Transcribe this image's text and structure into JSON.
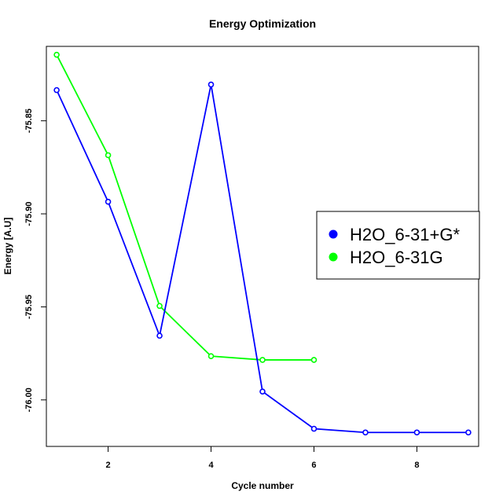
{
  "chart_data": {
    "type": "line",
    "title": "Energy Optimization",
    "xlabel": "Cycle number",
    "ylabel": "Energy [A.U]",
    "xlim": [
      0.8,
      9.2
    ],
    "ylim": [
      -76.025,
      -75.81
    ],
    "xticks": [
      2,
      4,
      6,
      8
    ],
    "yticks": [
      -75.85,
      -75.9,
      -75.95,
      -76.0
    ],
    "xtick_labels": [
      "2",
      "4",
      "6",
      "8"
    ],
    "ytick_labels": [
      "-75.85",
      "-75.90",
      "-75.95",
      "-76.00"
    ],
    "grid": false,
    "legend_position": "right",
    "series": [
      {
        "name": "H2O_6-31+G*",
        "color": "#0000ff",
        "x": [
          1,
          2,
          3,
          4,
          5,
          6,
          7,
          8,
          9
        ],
        "y": [
          -75.8335,
          -75.8935,
          -75.9655,
          -75.8305,
          -75.9955,
          -76.0155,
          -76.0175,
          -76.0175,
          -76.0175
        ]
      },
      {
        "name": "H2O_6-31G",
        "color": "#00ff00",
        "x": [
          1,
          2,
          3,
          4,
          5,
          6
        ],
        "y": [
          -75.8145,
          -75.8685,
          -75.9495,
          -75.9765,
          -75.9785,
          -75.9785
        ]
      }
    ]
  }
}
